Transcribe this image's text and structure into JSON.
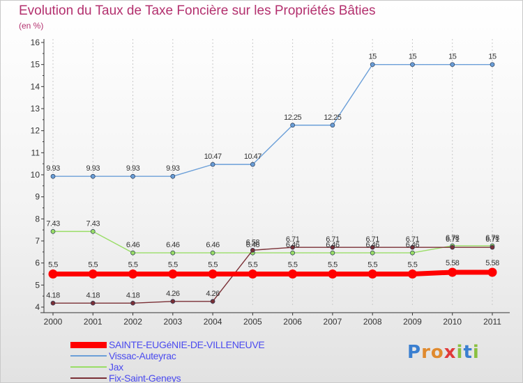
{
  "title": "Evolution du Taux de Taxe Foncière sur les Propriétés Bâties",
  "unit": "(en %)",
  "logo": "Proxiti",
  "colors": {
    "title": "#b3306e",
    "axis": "#333333",
    "grid": "#c8c8c8",
    "legend_text": "#4a4aef"
  },
  "chart_data": {
    "type": "line",
    "x": [
      "2000",
      "2001",
      "2002",
      "2003",
      "2004",
      "2005",
      "2006",
      "2007",
      "2008",
      "2009",
      "2010",
      "2011"
    ],
    "ylim": [
      4,
      16
    ],
    "yticks": [
      4,
      5,
      6,
      7,
      8,
      9,
      10,
      11,
      12,
      13,
      14,
      15,
      16
    ],
    "grid": "vertical-dashed",
    "legend": "bottom-left",
    "series": [
      {
        "name": "SAINTE-EUGéNIE-DE-VILLENEUVE",
        "color": "#ff0000",
        "values": [
          5.5,
          5.5,
          5.5,
          5.5,
          5.5,
          5.5,
          5.5,
          5.5,
          5.5,
          5.5,
          5.58,
          5.58
        ],
        "labels": [
          "5.5",
          "5.5",
          "5.5",
          "5.5",
          "5.5",
          "5.5",
          "5.5",
          "5.5",
          "5.5",
          "5.5",
          "5.58",
          "5.58"
        ]
      },
      {
        "name": "Vissac-Auteyrac",
        "color": "#6b9fd8",
        "values": [
          9.93,
          9.93,
          9.93,
          9.93,
          10.47,
          10.47,
          12.25,
          12.25,
          15,
          15,
          15,
          15
        ],
        "labels": [
          "9.93",
          "9.93",
          "9.93",
          "9.93",
          "10.47",
          "10.47",
          "12.25",
          "12.25",
          "15",
          "15",
          "15",
          "15"
        ]
      },
      {
        "name": "Jax",
        "color": "#99dd66",
        "values": [
          7.43,
          7.43,
          6.46,
          6.46,
          6.46,
          6.46,
          6.46,
          6.46,
          6.46,
          6.46,
          6.78,
          6.78
        ],
        "labels": [
          "7.43",
          "7.43",
          "6.46",
          "6.46",
          "6.46",
          "6.46",
          "6.46",
          "6.46",
          "6.46",
          "6.46",
          "6.78",
          "6.78"
        ]
      },
      {
        "name": "Fix-Saint-Geneys",
        "color": "#7a2f35",
        "values": [
          4.18,
          4.18,
          4.18,
          4.26,
          4.26,
          6.58,
          6.71,
          6.71,
          6.71,
          6.71,
          6.71,
          6.71
        ],
        "labels": [
          "4.18",
          "4.18",
          "4.18",
          "4.26",
          "4.26",
          "6.58",
          "6.71",
          "6.71",
          "6.71",
          "6.71",
          "6.71",
          "6.71"
        ]
      }
    ]
  }
}
